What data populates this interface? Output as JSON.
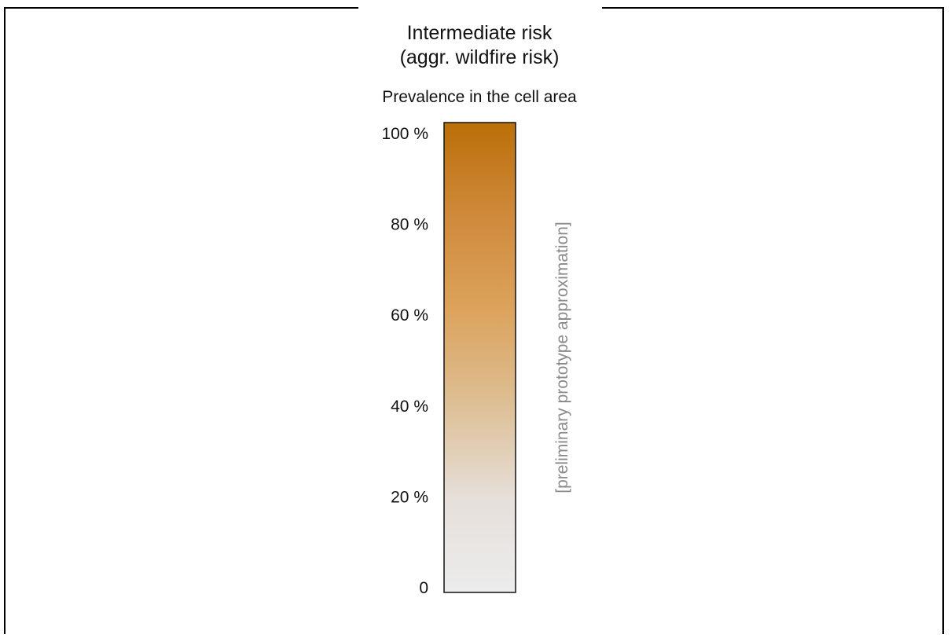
{
  "chart_data": {
    "type": "colorbar",
    "title_lines": [
      "Intermediate risk",
      "(aggr. wildfire risk)"
    ],
    "subtitle": "Prevalence in the cell area",
    "side_note": "[preliminary prototype approximation]",
    "ylim": [
      0,
      100
    ],
    "ticks": [
      {
        "value": 0,
        "label": "0"
      },
      {
        "value": 20,
        "label": "20 %"
      },
      {
        "value": 40,
        "label": "40 %"
      },
      {
        "value": 60,
        "label": "60 %"
      },
      {
        "value": 80,
        "label": "80 %"
      },
      {
        "value": 100,
        "label": "100 %"
      }
    ],
    "gradient_stops": [
      {
        "value": 0,
        "color": "#ececec"
      },
      {
        "value": 20,
        "color": "#e6dfda"
      },
      {
        "value": 40,
        "color": "#ddbf95"
      },
      {
        "value": 60,
        "color": "#dca35c"
      },
      {
        "value": 80,
        "color": "#cf8a3b"
      },
      {
        "value": 100,
        "color": "#bb6f08"
      }
    ]
  }
}
